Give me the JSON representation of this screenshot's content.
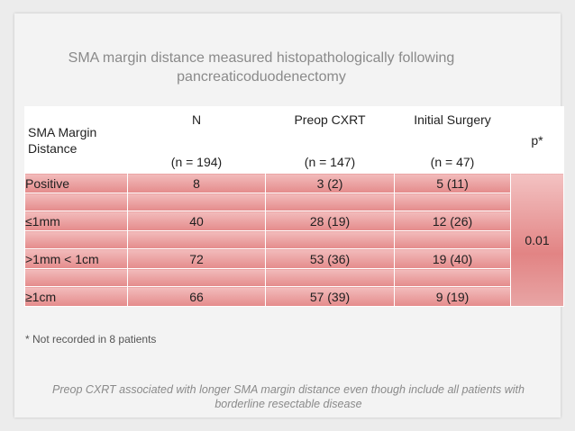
{
  "title": "SMA margin distance measured histopathologically following pancreaticoduodenectomy",
  "table": {
    "header": {
      "label_line1": "SMA Margin",
      "label_line2": "Distance",
      "col_n": "N",
      "col_n_sub": "(n = 194)",
      "col_preop": "Preop CXRT",
      "col_preop_sub": "(n = 147)",
      "col_surgery": "Initial Surgery",
      "col_surgery_sub": "(n = 47)",
      "col_p": "p*"
    },
    "rows": [
      {
        "label": "Positive",
        "n": "8",
        "preop": "3 (2)",
        "surgery": "5 (11)"
      },
      {
        "label": "≤1mm",
        "n": "40",
        "preop": "28 (19)",
        "surgery": "12 (26)"
      },
      {
        "label": ">1mm < 1cm",
        "n": "72",
        "preop": "53 (36)",
        "surgery": "19 (40)"
      },
      {
        "label": "≥1cm",
        "n": "66",
        "preop": "57 (39)",
        "surgery": "9 (19)"
      }
    ],
    "p_value": "0.01"
  },
  "footnote": "* Not recorded in 8 patients",
  "conclusion": "Preop CXRT associated with longer SMA margin distance even though include all patients with borderline resectable disease",
  "colors": {
    "background": "#ececec",
    "slide": "#f3f3f3",
    "cell_top": "#f2bcbc",
    "cell_bottom": "#e48b8b",
    "header_border": "#d8a0a0",
    "title_text": "#8a8a8a"
  }
}
